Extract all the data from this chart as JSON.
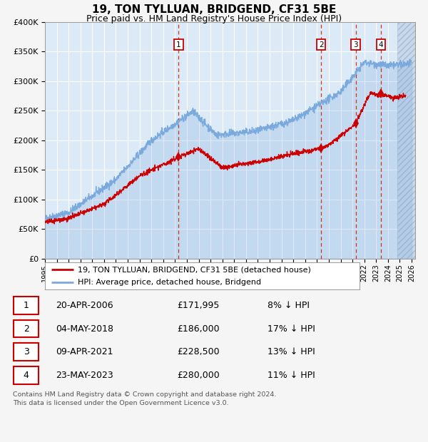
{
  "title": "19, TON TYLLUAN, BRIDGEND, CF31 5BE",
  "subtitle": "Price paid vs. HM Land Registry's House Price Index (HPI)",
  "fig_bg_color": "#f5f5f5",
  "plot_bg_color": "#dce9f7",
  "grid_color": "#ffffff",
  "ylim": [
    0,
    400000
  ],
  "yticks": [
    0,
    50000,
    100000,
    150000,
    200000,
    250000,
    300000,
    350000,
    400000
  ],
  "xlim_start": 1995.0,
  "xlim_end": 2026.3,
  "sale_color": "#cc0000",
  "hpi_color": "#7aaadd",
  "transactions": [
    {
      "num": 1,
      "date": "20-APR-2006",
      "price": 171995,
      "pct": "8%",
      "x_year": 2006.3
    },
    {
      "num": 2,
      "date": "04-MAY-2018",
      "price": 186000,
      "pct": "17%",
      "x_year": 2018.35
    },
    {
      "num": 3,
      "date": "09-APR-2021",
      "price": 228500,
      "pct": "13%",
      "x_year": 2021.27
    },
    {
      "num": 4,
      "date": "23-MAY-2023",
      "price": 280000,
      "pct": "11%",
      "x_year": 2023.39
    }
  ],
  "legend_label_sale": "19, TON TYLLUAN, BRIDGEND, CF31 5BE (detached house)",
  "legend_label_hpi": "HPI: Average price, detached house, Bridgend",
  "footer": "Contains HM Land Registry data © Crown copyright and database right 2024.\nThis data is licensed under the Open Government Licence v3.0.",
  "table_rows": [
    [
      "1",
      "20-APR-2006",
      "£171,995",
      "8% ↓ HPI"
    ],
    [
      "2",
      "04-MAY-2018",
      "£186,000",
      "17% ↓ HPI"
    ],
    [
      "3",
      "09-APR-2021",
      "£228,500",
      "13% ↓ HPI"
    ],
    [
      "4",
      "23-MAY-2023",
      "£280,000",
      "11% ↓ HPI"
    ]
  ]
}
